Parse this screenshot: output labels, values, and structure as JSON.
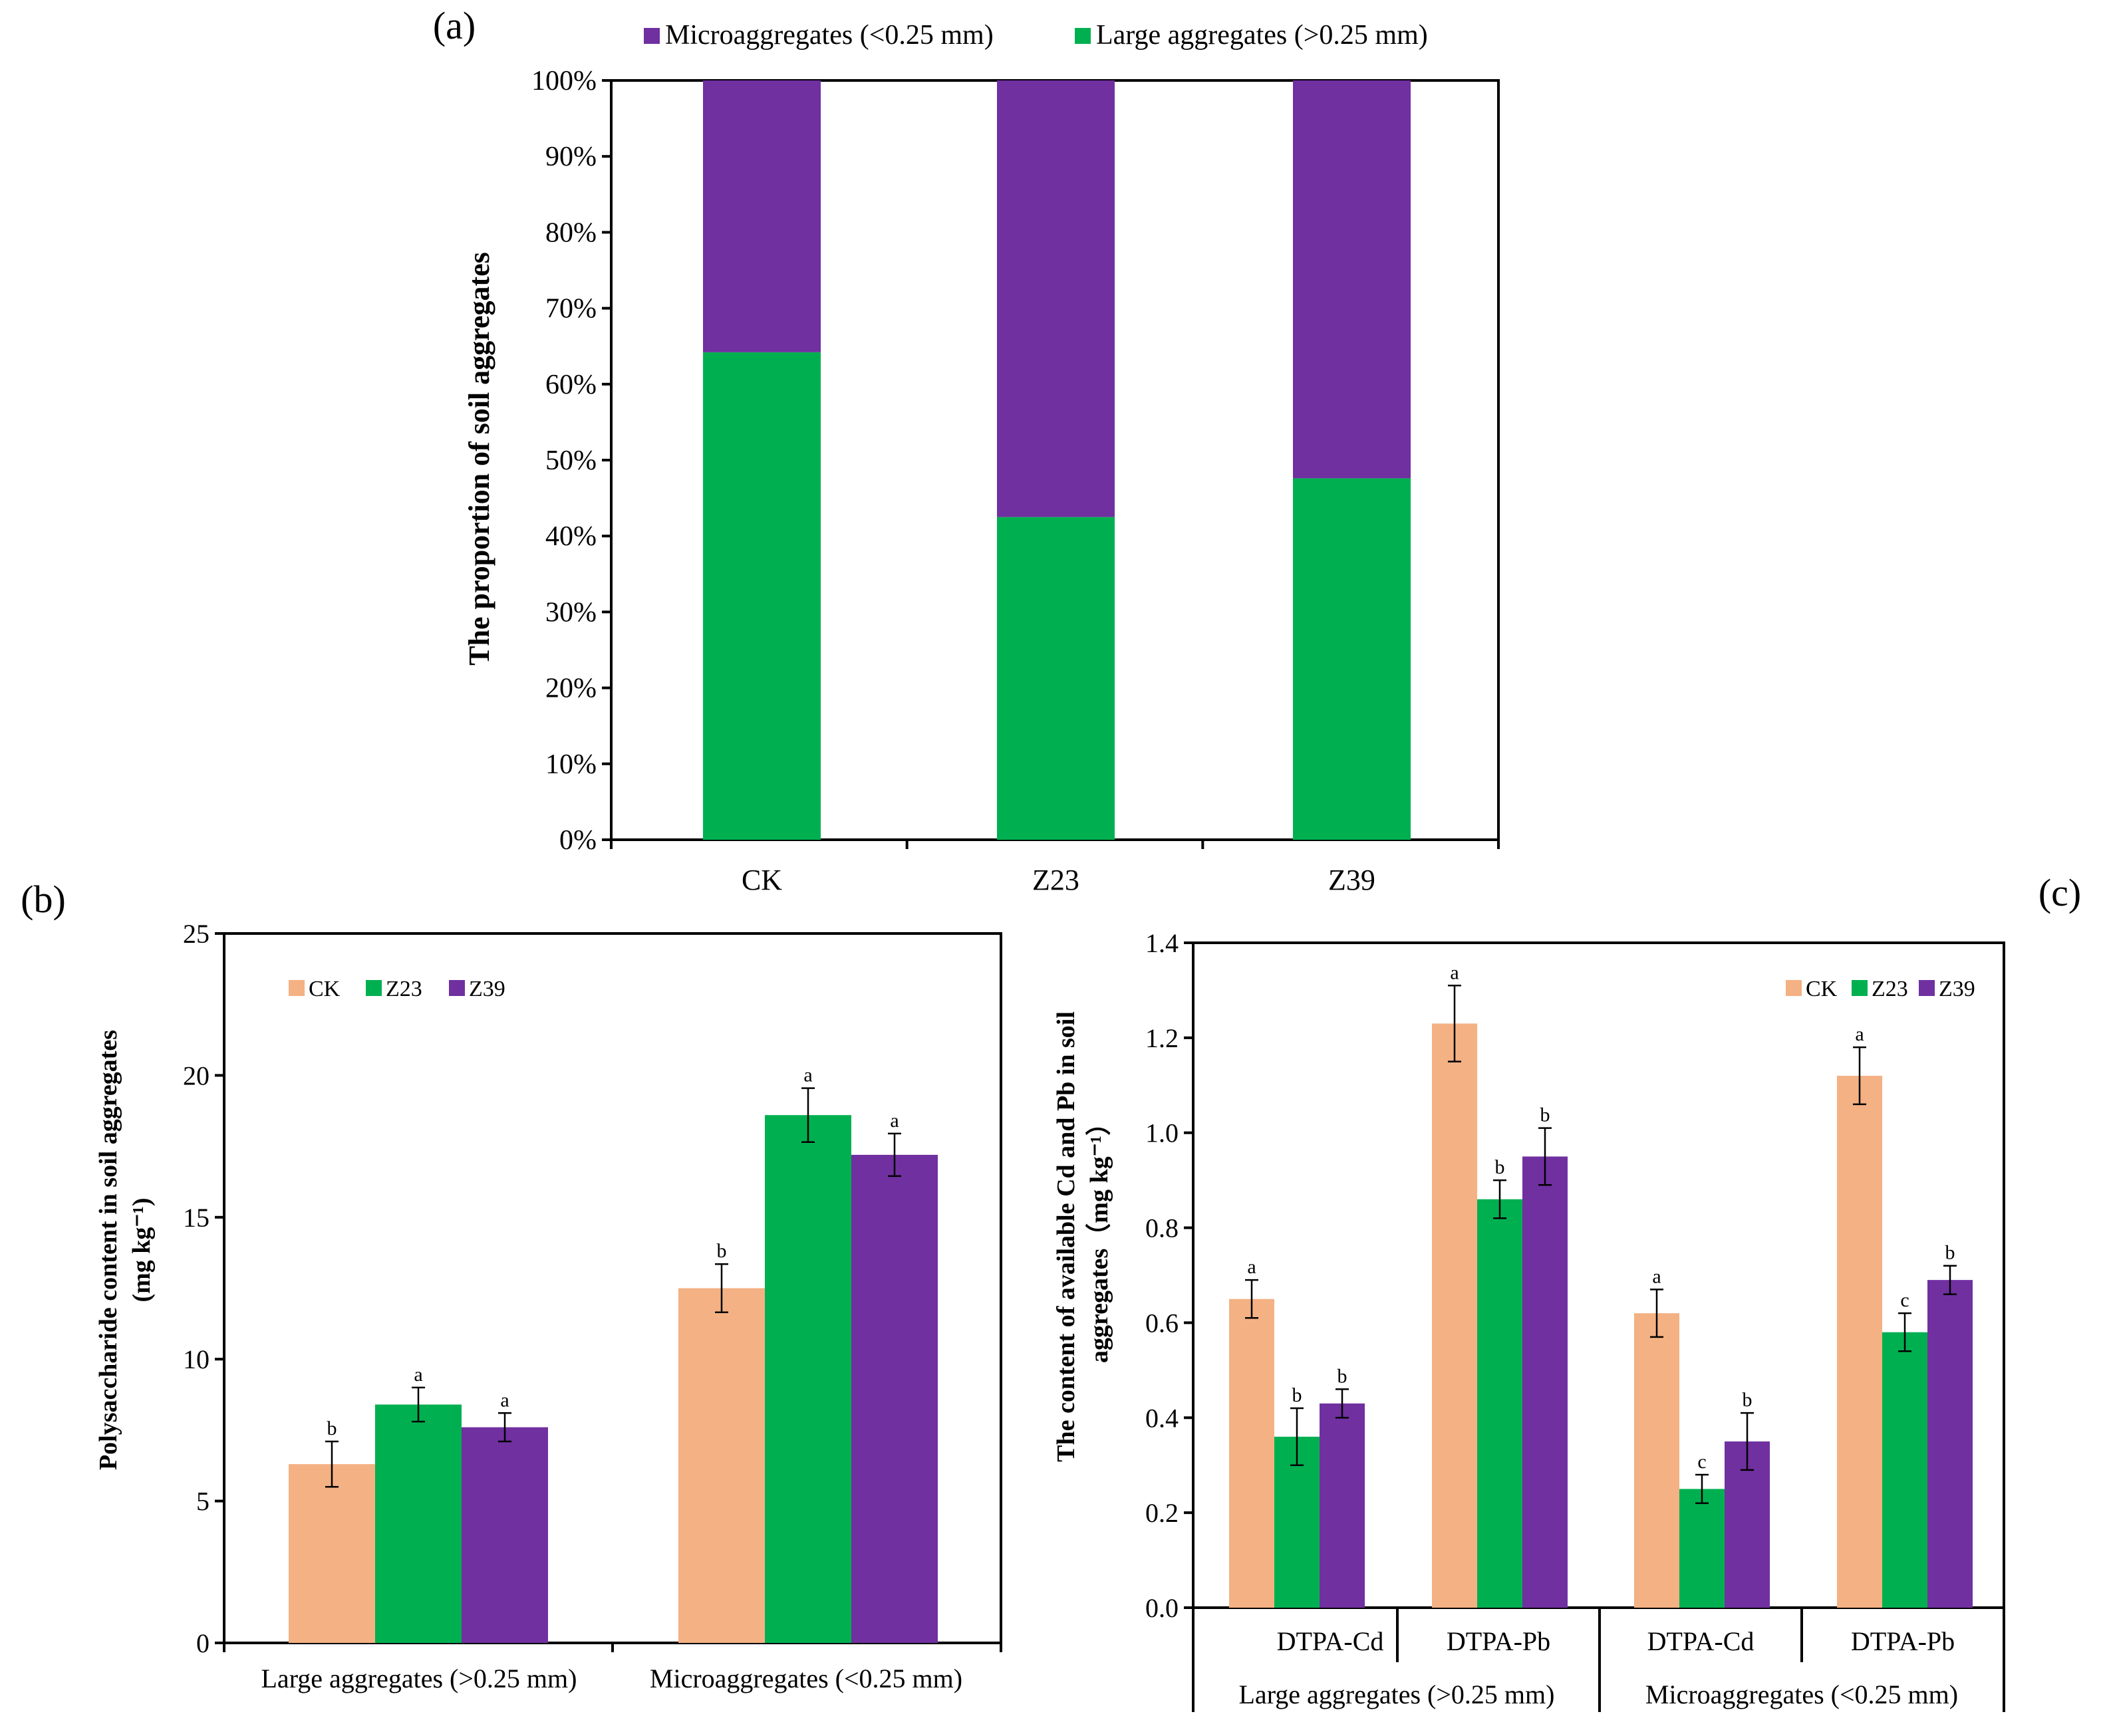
{
  "colors": {
    "CK": "#F4B183",
    "Z23": "#00B050",
    "Z39": "#7030A0",
    "micro": "#7030A0",
    "large": "#00B050"
  },
  "chart_data": [
    {
      "panel": "(a)",
      "type": "bar",
      "stacked": true,
      "categories": [
        "CK",
        "Z23",
        "Z39"
      ],
      "series": [
        {
          "name": "Large aggregates (>0.25 mm)",
          "values": [
            64.2,
            42.5,
            47.6
          ]
        },
        {
          "name": "Microaggregates (<0.25 mm)",
          "values": [
            35.8,
            57.5,
            52.4
          ]
        }
      ],
      "legend": [
        "Microaggregates (<0.25 mm)",
        "Large aggregates (>0.25 mm)"
      ],
      "legend_placement": "top",
      "ylabel": "The proportion of soil aggregates",
      "ylim": [
        0,
        100
      ],
      "yticks": [
        "0%",
        "10%",
        "20%",
        "30%",
        "40%",
        "50%",
        "60%",
        "70%",
        "80%",
        "90%",
        "100%"
      ]
    },
    {
      "panel": "(b)",
      "type": "bar",
      "categories": [
        "Large aggregates (>0.25 mm)",
        "Microaggregates (<0.25 mm)"
      ],
      "series": [
        {
          "name": "CK",
          "values": [
            6.3,
            12.5
          ],
          "errors": [
            0.8,
            0.85
          ],
          "letters": [
            "b",
            "b"
          ]
        },
        {
          "name": "Z23",
          "values": [
            8.4,
            18.6
          ],
          "errors": [
            0.6,
            0.95
          ],
          "letters": [
            "a",
            "a"
          ]
        },
        {
          "name": "Z39",
          "values": [
            7.6,
            17.2
          ],
          "errors": [
            0.5,
            0.75
          ],
          "letters": [
            "a",
            "a"
          ]
        }
      ],
      "legend_placement": "top-left",
      "ylabel_line1": "Polysaccharide content in soil aggregates",
      "ylabel_line2": "(mg kg⁻¹)",
      "ylim": [
        0,
        25
      ],
      "yticks": [
        "0",
        "5",
        "10",
        "15",
        "20",
        "25"
      ]
    },
    {
      "panel": "(c)",
      "type": "bar",
      "categories": [
        "DTPA-Cd",
        "DTPA-Pb",
        "DTPA-Cd",
        "DTPA-Pb"
      ],
      "groups": [
        "Large aggregates (>0.25 mm)",
        "Microaggregates (<0.25 mm)"
      ],
      "series": [
        {
          "name": "CK",
          "values": [
            0.65,
            1.23,
            0.62,
            1.12
          ],
          "errors": [
            0.04,
            0.08,
            0.05,
            0.06
          ],
          "letters": [
            "a",
            "a",
            "a",
            "a"
          ]
        },
        {
          "name": "Z23",
          "values": [
            0.36,
            0.86,
            0.25,
            0.58
          ],
          "errors": [
            0.06,
            0.04,
            0.03,
            0.04
          ],
          "letters": [
            "b",
            "b",
            "c",
            "c"
          ]
        },
        {
          "name": "Z39",
          "values": [
            0.43,
            0.95,
            0.35,
            0.69
          ],
          "errors": [
            0.03,
            0.06,
            0.06,
            0.03
          ],
          "letters": [
            "b",
            "b",
            "b",
            "b"
          ]
        }
      ],
      "legend_placement": "top-right",
      "ylabel_line1": "The content of available Cd and Pb in soil",
      "ylabel_line2": "aggregates（mg kg⁻¹）",
      "ylim": [
        0,
        1.4
      ],
      "yticks": [
        "0.0",
        "0.2",
        "0.4",
        "0.6",
        "0.8",
        "1.0",
        "1.2",
        "1.4"
      ]
    }
  ]
}
